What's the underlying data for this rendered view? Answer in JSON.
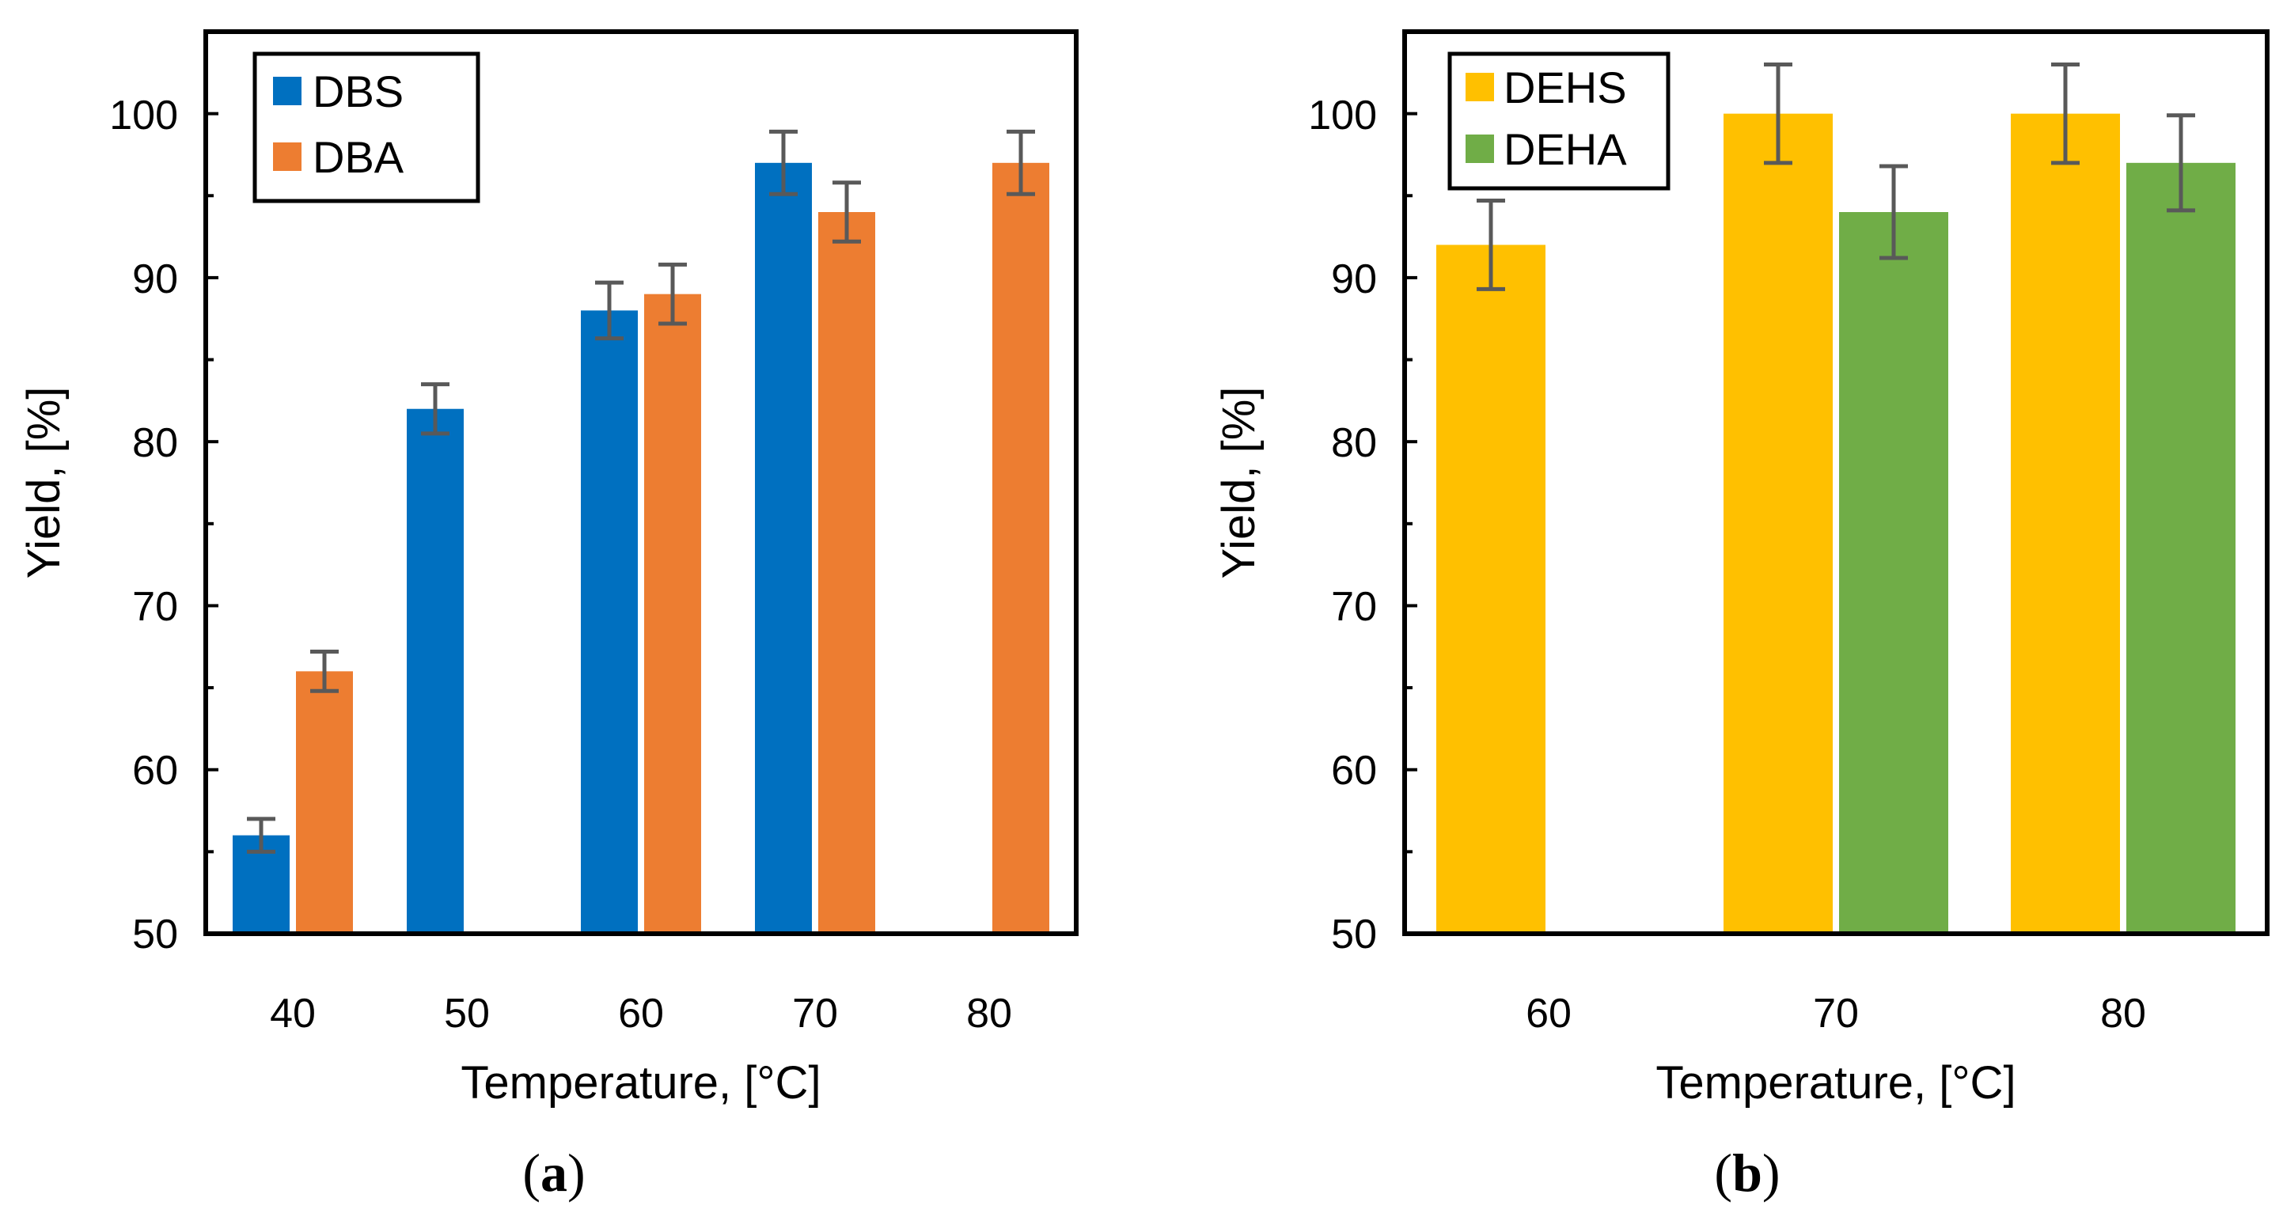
{
  "chart_data": [
    {
      "type": "bar",
      "panel_label": {
        "open": "(",
        "letter": "a",
        "close": ")"
      },
      "categories": [
        "40",
        "50",
        "60",
        "70",
        "80"
      ],
      "series": [
        {
          "name": "DBS",
          "color": "#0070C0",
          "values": [
            56,
            82,
            88,
            97,
            null
          ],
          "errors": [
            1,
            1.5,
            1.7,
            1.9,
            null
          ]
        },
        {
          "name": "DBA",
          "color": "#ED7D31",
          "values": [
            66,
            null,
            89,
            94,
            97
          ],
          "errors": [
            1.2,
            null,
            1.8,
            1.8,
            1.9
          ]
        }
      ],
      "xlabel": "Temperature, [°C]",
      "ylabel": "Yield, [%]",
      "ylim": [
        50,
        105
      ],
      "yticks": [
        "50",
        "60",
        "70",
        "80",
        "90",
        "100"
      ],
      "legend": "top-left",
      "grid": false
    },
    {
      "type": "bar",
      "panel_label": {
        "open": "(",
        "letter": "b",
        "close": ")"
      },
      "categories": [
        "60",
        "70",
        "80"
      ],
      "series": [
        {
          "name": "DEHS",
          "color": "#FFC000",
          "values": [
            92,
            100,
            100
          ],
          "errors": [
            2.7,
            3,
            3
          ]
        },
        {
          "name": "DEHA",
          "color": "#70AD47",
          "values": [
            null,
            94,
            97
          ],
          "errors": [
            null,
            2.8,
            2.9
          ]
        }
      ],
      "xlabel": "Temperature, [°C]",
      "ylabel": "Yield, [%]",
      "ylim": [
        50,
        105
      ],
      "yticks": [
        "50",
        "60",
        "70",
        "80",
        "90",
        "100"
      ],
      "legend": "top-left",
      "grid": false
    }
  ]
}
